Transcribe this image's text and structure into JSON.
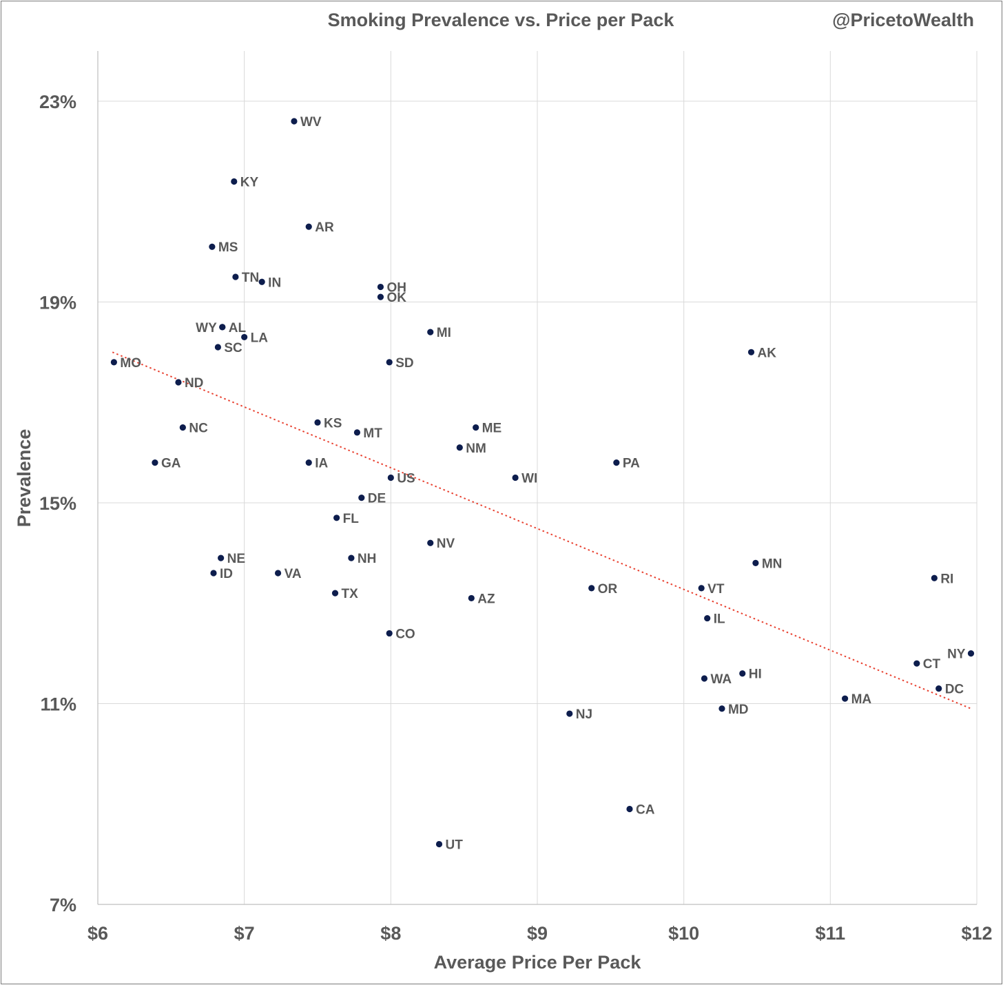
{
  "chart_data": {
    "type": "scatter",
    "title": "Smoking Prevalence vs. Price per Pack",
    "watermark": "@PricetoWealth",
    "xlabel": "Average Price Per Pack",
    "ylabel": "Prevalence",
    "xlim": [
      6,
      12
    ],
    "ylim": [
      7,
      24
    ],
    "x_ticks": [
      {
        "value": 6,
        "label": "$6"
      },
      {
        "value": 7,
        "label": "$7"
      },
      {
        "value": 8,
        "label": "$8"
      },
      {
        "value": 9,
        "label": "$9"
      },
      {
        "value": 10,
        "label": "$10"
      },
      {
        "value": 11,
        "label": "$11"
      },
      {
        "value": 12,
        "label": "$12"
      }
    ],
    "y_ticks": [
      {
        "value": 7,
        "label": "7%"
      },
      {
        "value": 11,
        "label": "11%"
      },
      {
        "value": 15,
        "label": "15%"
      },
      {
        "value": 19,
        "label": "19%"
      },
      {
        "value": 23,
        "label": "23%"
      }
    ],
    "trendline": {
      "style": "dotted",
      "color": "#e8402f",
      "x": [
        6.1,
        11.96
      ],
      "y": [
        18.0,
        10.9
      ]
    },
    "marker_color": "#0d1d4d",
    "points": [
      {
        "label": "WV",
        "x": 7.34,
        "y": 22.6,
        "anchor": "right"
      },
      {
        "label": "KY",
        "x": 6.93,
        "y": 21.4,
        "anchor": "right"
      },
      {
        "label": "AR",
        "x": 7.44,
        "y": 20.5,
        "anchor": "right"
      },
      {
        "label": "MS",
        "x": 6.78,
        "y": 20.1,
        "anchor": "right"
      },
      {
        "label": "TN",
        "x": 6.94,
        "y": 19.5,
        "anchor": "right"
      },
      {
        "label": "IN",
        "x": 7.12,
        "y": 19.4,
        "anchor": "right"
      },
      {
        "label": "OH",
        "x": 7.93,
        "y": 19.3,
        "anchor": "right"
      },
      {
        "label": "OK",
        "x": 7.93,
        "y": 19.1,
        "anchor": "right"
      },
      {
        "label": "WY",
        "x": 6.85,
        "y": 18.5,
        "anchor": "left"
      },
      {
        "label": "AL",
        "x": 6.85,
        "y": 18.5,
        "anchor": "right"
      },
      {
        "label": "LA",
        "x": 7.0,
        "y": 18.3,
        "anchor": "right"
      },
      {
        "label": "MI",
        "x": 8.27,
        "y": 18.4,
        "anchor": "right"
      },
      {
        "label": "SC",
        "x": 6.82,
        "y": 18.1,
        "anchor": "right"
      },
      {
        "label": "MO",
        "x": 6.11,
        "y": 17.8,
        "anchor": "right"
      },
      {
        "label": "SD",
        "x": 7.99,
        "y": 17.8,
        "anchor": "right"
      },
      {
        "label": "AK",
        "x": 10.46,
        "y": 18.0,
        "anchor": "right"
      },
      {
        "label": "ND",
        "x": 6.55,
        "y": 17.4,
        "anchor": "right"
      },
      {
        "label": "KS",
        "x": 7.5,
        "y": 16.6,
        "anchor": "right"
      },
      {
        "label": "NC",
        "x": 6.58,
        "y": 16.5,
        "anchor": "right"
      },
      {
        "label": "ME",
        "x": 8.58,
        "y": 16.5,
        "anchor": "right"
      },
      {
        "label": "MT",
        "x": 7.77,
        "y": 16.4,
        "anchor": "right"
      },
      {
        "label": "NM",
        "x": 8.47,
        "y": 16.1,
        "anchor": "right"
      },
      {
        "label": "GA",
        "x": 6.39,
        "y": 15.8,
        "anchor": "right"
      },
      {
        "label": "IA",
        "x": 7.44,
        "y": 15.8,
        "anchor": "right"
      },
      {
        "label": "PA",
        "x": 9.54,
        "y": 15.8,
        "anchor": "right"
      },
      {
        "label": "US",
        "x": 8.0,
        "y": 15.5,
        "anchor": "right"
      },
      {
        "label": "WI",
        "x": 8.85,
        "y": 15.5,
        "anchor": "right"
      },
      {
        "label": "DE",
        "x": 7.8,
        "y": 15.1,
        "anchor": "right"
      },
      {
        "label": "FL",
        "x": 7.63,
        "y": 14.7,
        "anchor": "right"
      },
      {
        "label": "NV",
        "x": 8.27,
        "y": 14.2,
        "anchor": "right"
      },
      {
        "label": "NE",
        "x": 6.84,
        "y": 13.9,
        "anchor": "right"
      },
      {
        "label": "NH",
        "x": 7.73,
        "y": 13.9,
        "anchor": "right"
      },
      {
        "label": "MN",
        "x": 10.49,
        "y": 13.8,
        "anchor": "right"
      },
      {
        "label": "ID",
        "x": 6.79,
        "y": 13.6,
        "anchor": "right"
      },
      {
        "label": "VA",
        "x": 7.23,
        "y": 13.6,
        "anchor": "right"
      },
      {
        "label": "RI",
        "x": 11.71,
        "y": 13.5,
        "anchor": "right"
      },
      {
        "label": "OR",
        "x": 9.37,
        "y": 13.3,
        "anchor": "right"
      },
      {
        "label": "VT",
        "x": 10.12,
        "y": 13.3,
        "anchor": "right"
      },
      {
        "label": "TX",
        "x": 7.62,
        "y": 13.2,
        "anchor": "right"
      },
      {
        "label": "AZ",
        "x": 8.55,
        "y": 13.1,
        "anchor": "right"
      },
      {
        "label": "IL",
        "x": 10.16,
        "y": 12.7,
        "anchor": "right"
      },
      {
        "label": "CO",
        "x": 7.99,
        "y": 12.4,
        "anchor": "right"
      },
      {
        "label": "NY",
        "x": 11.96,
        "y": 12.0,
        "anchor": "left"
      },
      {
        "label": "CT",
        "x": 11.59,
        "y": 11.8,
        "anchor": "right"
      },
      {
        "label": "HI",
        "x": 10.4,
        "y": 11.6,
        "anchor": "right"
      },
      {
        "label": "WA",
        "x": 10.14,
        "y": 11.5,
        "anchor": "right"
      },
      {
        "label": "DC",
        "x": 11.74,
        "y": 11.3,
        "anchor": "right"
      },
      {
        "label": "MA",
        "x": 11.1,
        "y": 11.1,
        "anchor": "right"
      },
      {
        "label": "MD",
        "x": 10.26,
        "y": 10.9,
        "anchor": "right"
      },
      {
        "label": "NJ",
        "x": 9.22,
        "y": 10.8,
        "anchor": "right"
      },
      {
        "label": "CA",
        "x": 9.63,
        "y": 8.9,
        "anchor": "right"
      },
      {
        "label": "UT",
        "x": 8.33,
        "y": 8.2,
        "anchor": "right"
      }
    ]
  }
}
